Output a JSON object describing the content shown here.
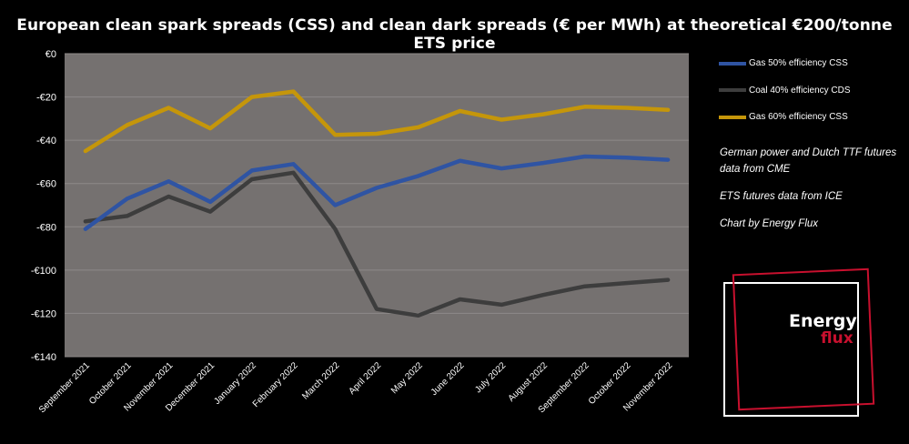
{
  "title": "European clean spark spreads (CSS) and clean dark spreads (€ per MWh) at theoretical €200/tonne ETS price",
  "chart_data": {
    "type": "line",
    "categories": [
      "September 2021",
      "October 2021",
      "November 2021",
      "December 2021",
      "January 2022",
      "February 2022",
      "March 2022",
      "April 2022",
      "May 2022",
      "June 2022",
      "July 2022",
      "August 2022",
      "September 2022",
      "October 2022",
      "November 2022"
    ],
    "y_ticks": [
      "€0",
      "-€20",
      "-€40",
      "-€60",
      "-€80",
      "-€100",
      "-€120",
      "-€140"
    ],
    "ylim": [
      -140,
      0
    ],
    "grid": true,
    "legend_position": "right",
    "plot_background": "#757170",
    "series": [
      {
        "name": "Gas 50% efficiency CSS",
        "color": "#2f54a3",
        "values": [
          -81,
          -67,
          -59,
          -68.5,
          -54,
          -51,
          -70,
          -62,
          -56.5,
          -49.5,
          -53,
          -50.5,
          -47.5,
          -48,
          -49
        ]
      },
      {
        "name": "Coal 40% efficiency CDS",
        "color": "#3d3d3d",
        "values": [
          -77.5,
          -75,
          -66,
          -73,
          -58,
          -55,
          -81,
          -118,
          -121,
          -113.5,
          -116,
          -111.5,
          -107.5,
          -106,
          -104.5
        ]
      },
      {
        "name": "Gas 60% efficiency CSS",
        "color": "#c5960a",
        "values": [
          -45,
          -33,
          -25,
          -34.5,
          -20,
          -17.5,
          -37.5,
          -37,
          -34,
          -26.5,
          -30.5,
          -28,
          -24.5,
          -25,
          -26
        ]
      }
    ]
  },
  "notes": [
    "German power and Dutch TTF futures data from CME",
    "ETS futures data from ICE",
    "Chart by Energy Flux"
  ],
  "logo": {
    "word1": "Energy",
    "word2": "flux"
  }
}
